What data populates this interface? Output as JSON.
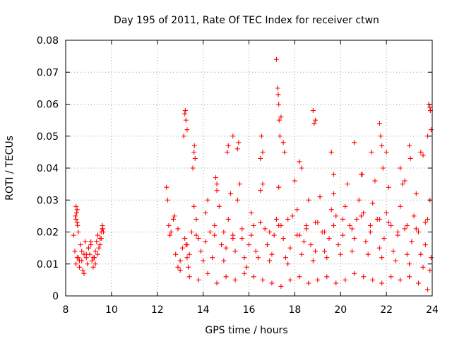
{
  "chart_data": {
    "type": "scatter",
    "title": "Day 195 of 2011, Rate Of TEC Index for receiver ctwn",
    "xlabel": "GPS time / hours",
    "ylabel": "ROTI / TECUs",
    "xlim": [
      8,
      24
    ],
    "ylim": [
      0,
      0.08
    ],
    "xticks": [
      8,
      10,
      12,
      14,
      16,
      18,
      20,
      22,
      24
    ],
    "yticks": [
      0,
      0.01,
      0.02,
      0.03,
      0.04,
      0.05,
      0.06,
      0.07,
      0.08
    ],
    "ytick_labels": [
      "0",
      "0.01",
      "0.02",
      "0.03",
      "0.04",
      "0.05",
      "0.06",
      "0.07",
      "0.08"
    ],
    "grid": true,
    "marker": "plus",
    "color": "#ff0000",
    "series": [
      {
        "x": [
          8.35,
          8.4,
          8.45,
          8.5,
          8.55,
          8.6,
          8.65,
          8.7,
          8.75,
          8.8,
          8.85,
          8.9,
          8.95,
          9.0,
          9.05,
          9.1,
          9.15,
          9.2,
          9.25,
          9.3,
          9.35,
          9.4,
          9.45,
          9.5,
          9.55,
          9.6,
          9.65,
          8.42,
          8.45,
          8.48,
          8.5,
          8.52,
          8.55,
          8.45,
          8.5,
          8.6,
          8.7,
          8.8,
          8.9,
          9.0,
          9.1,
          9.2,
          9.3,
          9.4,
          9.5,
          9.55,
          9.6,
          9.62,
          12.4,
          12.5,
          12.6,
          12.7,
          12.8,
          12.9,
          13.0,
          13.1,
          13.2,
          13.25,
          13.3,
          13.35,
          13.4,
          13.5,
          13.6,
          13.7,
          13.8,
          13.9,
          14.0,
          14.1,
          14.2,
          14.3,
          14.4,
          14.5,
          14.6,
          14.7,
          14.8,
          14.9,
          15.0,
          15.1,
          15.2,
          15.3,
          15.4,
          15.5,
          15.6,
          15.7,
          15.8,
          15.9,
          16.0,
          16.1,
          16.2,
          16.3,
          16.4,
          16.5,
          16.6,
          16.7,
          16.8,
          16.9,
          17.0,
          17.1,
          17.2,
          17.3,
          17.4,
          17.5,
          17.6,
          17.7,
          17.8,
          17.9,
          18.0,
          18.1,
          18.2,
          18.3,
          18.4,
          18.5,
          18.6,
          18.7,
          18.8,
          18.9,
          19.0,
          19.1,
          19.2,
          19.3,
          19.4,
          19.5,
          19.6,
          19.7,
          19.8,
          19.9,
          20.0,
          20.1,
          20.2,
          20.3,
          20.4,
          20.5,
          20.6,
          20.7,
          20.8,
          20.9,
          21.0,
          21.1,
          21.2,
          21.3,
          21.4,
          21.5,
          21.6,
          21.7,
          21.8,
          21.9,
          22.0,
          22.1,
          22.2,
          22.3,
          22.4,
          22.5,
          22.6,
          22.7,
          22.8,
          22.9,
          23.0,
          23.1,
          23.2,
          23.3,
          23.4,
          23.5,
          23.6,
          23.7,
          23.8,
          23.9,
          23.95,
          12.45,
          12.55,
          12.75,
          13.15,
          13.2,
          13.22,
          13.25,
          13.3,
          13.55,
          13.6,
          13.62,
          13.65,
          14.55,
          14.6,
          15.05,
          15.1,
          15.3,
          15.5,
          15.55,
          16.5,
          16.55,
          16.6,
          17.2,
          17.25,
          17.28,
          17.3,
          17.32,
          17.35,
          17.4,
          17.5,
          17.55,
          18.2,
          18.3,
          18.8,
          18.85,
          18.9,
          19.6,
          19.7,
          20.6,
          20.95,
          21.35,
          21.7,
          21.75,
          21.8,
          21.85,
          22.0,
          22.6,
          22.8,
          23.0,
          23.05,
          23.5,
          23.6,
          23.8,
          23.85,
          23.9,
          23.92,
          23.95,
          13.0,
          13.4,
          13.8,
          14.2,
          14.6,
          15.0,
          15.4,
          15.8,
          16.2,
          16.6,
          17.0,
          17.4,
          17.8,
          18.2,
          18.6,
          19.0,
          19.4,
          19.8,
          20.2,
          20.6,
          21.0,
          21.4,
          21.8,
          22.2,
          22.6,
          23.0,
          23.4,
          23.8,
          12.9,
          13.3,
          13.7,
          14.1,
          14.5,
          14.9,
          15.3,
          15.7,
          16.1,
          16.5,
          16.9,
          17.3,
          17.7,
          18.1,
          18.5,
          18.9,
          19.3,
          19.7,
          20.1,
          20.5,
          20.9,
          21.3,
          21.7,
          22.1,
          22.5,
          22.9,
          23.3,
          23.7,
          23.9
        ],
        "y": [
          0.019,
          0.014,
          0.024,
          0.027,
          0.012,
          0.009,
          0.016,
          0.011,
          0.008,
          0.013,
          0.017,
          0.012,
          0.01,
          0.015,
          0.013,
          0.016,
          0.011,
          0.009,
          0.012,
          0.014,
          0.017,
          0.019,
          0.015,
          0.018,
          0.02,
          0.021,
          0.02,
          0.025,
          0.028,
          0.026,
          0.023,
          0.022,
          0.02,
          0.01,
          0.012,
          0.011,
          0.014,
          0.007,
          0.013,
          0.015,
          0.017,
          0.012,
          0.01,
          0.013,
          0.016,
          0.018,
          0.022,
          0.021,
          0.034,
          0.022,
          0.02,
          0.024,
          0.013,
          0.009,
          0.011,
          0.015,
          0.018,
          0.016,
          0.012,
          0.009,
          0.013,
          0.02,
          0.028,
          0.024,
          0.018,
          0.014,
          0.011,
          0.026,
          0.03,
          0.02,
          0.012,
          0.019,
          0.033,
          0.028,
          0.016,
          0.011,
          0.015,
          0.024,
          0.032,
          0.019,
          0.014,
          0.03,
          0.035,
          0.018,
          0.012,
          0.009,
          0.016,
          0.026,
          0.022,
          0.014,
          0.012,
          0.033,
          0.035,
          0.021,
          0.016,
          0.011,
          0.013,
          0.019,
          0.024,
          0.034,
          0.022,
          0.018,
          0.012,
          0.01,
          0.015,
          0.025,
          0.036,
          0.027,
          0.019,
          0.013,
          0.017,
          0.022,
          0.03,
          0.016,
          0.011,
          0.014,
          0.023,
          0.031,
          0.02,
          0.014,
          0.012,
          0.018,
          0.027,
          0.032,
          0.025,
          0.016,
          0.013,
          0.019,
          0.028,
          0.035,
          0.022,
          0.014,
          0.018,
          0.024,
          0.03,
          0.038,
          0.026,
          0.017,
          0.013,
          0.02,
          0.029,
          0.036,
          0.024,
          0.015,
          0.012,
          0.018,
          0.026,
          0.034,
          0.022,
          0.014,
          0.011,
          0.019,
          0.028,
          0.035,
          0.021,
          0.013,
          0.01,
          0.017,
          0.025,
          0.032,
          0.02,
          0.013,
          0.009,
          0.016,
          0.024,
          0.03,
          0.012,
          0.03,
          0.019,
          0.025,
          0.05,
          0.057,
          0.058,
          0.055,
          0.052,
          0.04,
          0.045,
          0.047,
          0.043,
          0.037,
          0.035,
          0.045,
          0.047,
          0.05,
          0.046,
          0.048,
          0.043,
          0.05,
          0.045,
          0.074,
          0.065,
          0.063,
          0.06,
          0.055,
          0.05,
          0.056,
          0.048,
          0.045,
          0.042,
          0.04,
          0.058,
          0.054,
          0.055,
          0.045,
          0.038,
          0.048,
          0.038,
          0.045,
          0.054,
          0.05,
          0.047,
          0.04,
          0.045,
          0.04,
          0.036,
          0.047,
          0.043,
          0.045,
          0.044,
          0.05,
          0.06,
          0.059,
          0.058,
          0.052,
          0.008,
          0.006,
          0.005,
          0.007,
          0.004,
          0.006,
          0.005,
          0.007,
          0.006,
          0.005,
          0.004,
          0.003,
          0.005,
          0.006,
          0.004,
          0.005,
          0.006,
          0.004,
          0.005,
          0.007,
          0.006,
          0.005,
          0.004,
          0.006,
          0.005,
          0.006,
          0.004,
          0.002,
          0.021,
          0.016,
          0.019,
          0.017,
          0.022,
          0.02,
          0.018,
          0.021,
          0.019,
          0.023,
          0.02,
          0.022,
          0.024,
          0.019,
          0.021,
          0.023,
          0.02,
          0.022,
          0.024,
          0.021,
          0.025,
          0.022,
          0.024,
          0.023,
          0.02,
          0.022,
          0.021,
          0.023,
          0.008
        ]
      }
    ]
  }
}
